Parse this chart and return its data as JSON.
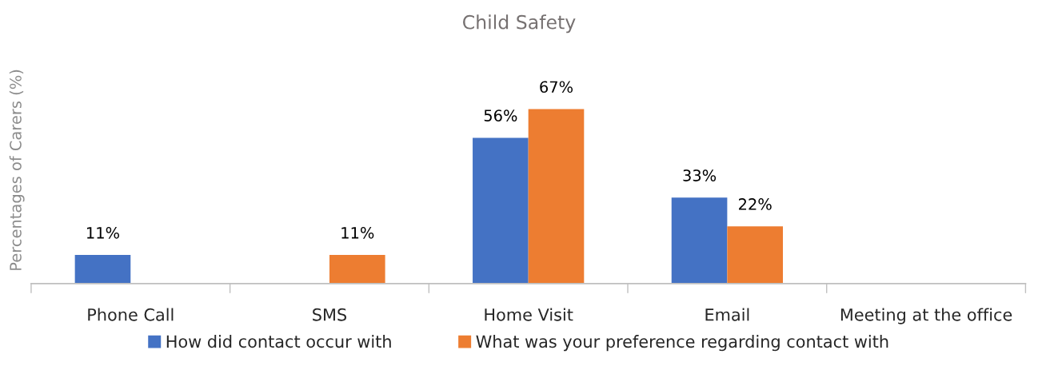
{
  "chart_data": {
    "type": "bar",
    "title": "Child Safety",
    "ylabel": "Percentages of Carers (%)",
    "categories": [
      "Phone Call",
      "SMS",
      "Home Visit",
      "Email",
      "Meeting at the office"
    ],
    "series": [
      {
        "name": "How did contact occur with",
        "color": "#4472c4",
        "values": [
          11,
          null,
          56,
          33,
          null
        ],
        "value_labels": [
          "11%",
          null,
          "56%",
          "33%",
          null
        ]
      },
      {
        "name": "What was your preference regarding contact with",
        "color": "#ed7d31",
        "values": [
          null,
          11,
          67,
          22,
          null
        ],
        "value_labels": [
          null,
          "11%",
          "67%",
          "22%",
          null
        ]
      }
    ],
    "legend": "bottom"
  }
}
